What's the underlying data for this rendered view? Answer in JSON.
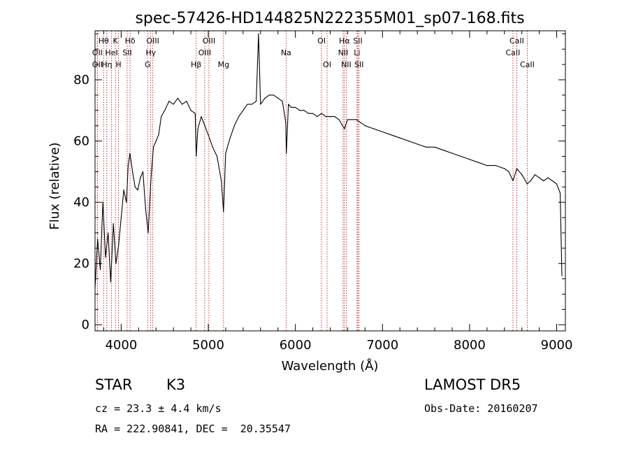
{
  "chart_data": {
    "type": "line",
    "title": "spec-57426-HD144825N222355M01_sp07-168.fits",
    "xlabel": "Wavelength (Å)",
    "ylabel": "Flux (relative)",
    "xlim": [
      3700,
      9100
    ],
    "ylim": [
      -2,
      96
    ],
    "x_ticks": [
      4000,
      5000,
      6000,
      7000,
      8000,
      9000
    ],
    "y_ticks": [
      0,
      20,
      40,
      60,
      80
    ],
    "grid": false,
    "series": [
      {
        "x": [
          3700,
          3730,
          3760,
          3790,
          3820,
          3850,
          3880,
          3910,
          3940,
          3970,
          4000,
          4030,
          4060,
          4080,
          4100,
          4130,
          4160,
          4190,
          4220,
          4250,
          4280,
          4310,
          4340,
          4370,
          4400,
          4430,
          4460,
          4500,
          4550,
          4600,
          4650,
          4700,
          4750,
          4800,
          4850,
          4861,
          4880,
          4920,
          4960,
          5000,
          5050,
          5100,
          5150,
          5175,
          5200,
          5250,
          5300,
          5350,
          5400,
          5450,
          5500,
          5550,
          5577,
          5600,
          5650,
          5700,
          5750,
          5800,
          5850,
          5890,
          5896,
          5920,
          5950,
          6000,
          6050,
          6100,
          6150,
          6200,
          6250,
          6300,
          6350,
          6400,
          6450,
          6500,
          6563,
          6600,
          6650,
          6700,
          6750,
          6800,
          6900,
          7000,
          7100,
          7200,
          7300,
          7400,
          7500,
          7600,
          7700,
          7800,
          7900,
          8000,
          8100,
          8200,
          8300,
          8400,
          8450,
          8498,
          8542,
          8600,
          8662,
          8700,
          8750,
          8800,
          8850,
          8900,
          8950,
          9000,
          9040,
          9060
        ],
        "y": [
          12,
          28,
          18,
          40,
          22,
          30,
          14,
          33,
          20,
          26,
          35,
          44,
          40,
          52,
          56,
          50,
          45,
          44,
          48,
          50,
          38,
          30,
          47,
          58,
          60,
          62,
          68,
          70,
          73,
          72,
          74,
          72,
          73,
          70,
          69,
          55,
          64,
          68,
          65,
          62,
          58,
          55,
          47,
          37,
          56,
          61,
          65,
          68,
          70,
          72,
          72,
          73,
          95,
          72,
          74,
          75,
          75,
          74,
          73,
          66,
          56,
          72,
          71,
          71,
          70,
          70,
          69,
          69,
          68,
          69,
          68,
          68,
          68,
          67,
          64,
          67,
          67,
          67,
          66,
          65,
          64,
          63,
          62,
          61,
          60,
          59,
          58,
          58,
          57,
          56,
          55,
          54,
          53,
          52,
          52,
          51,
          50,
          47,
          51,
          49,
          46,
          47,
          49,
          48,
          47,
          48,
          47,
          46,
          43,
          16
        ]
      }
    ],
    "lines": [
      {
        "name": "Hθ",
        "wave": 3798,
        "row": 0
      },
      {
        "name": "OII",
        "wave": 3727,
        "row": 1
      },
      {
        "name": "OII",
        "wave": 3727,
        "row": 2
      },
      {
        "name": "K",
        "wave": 3934,
        "row": 0
      },
      {
        "name": "HeI",
        "wave": 3889,
        "row": 1
      },
      {
        "name": "Hη",
        "wave": 3835,
        "row": 2
      },
      {
        "name": "H",
        "wave": 3969,
        "row": 2
      },
      {
        "name": "Hδ",
        "wave": 4102,
        "row": 0
      },
      {
        "name": "SII",
        "wave": 4069,
        "row": 1
      },
      {
        "name": "OIII",
        "wave": 4363,
        "row": 0
      },
      {
        "name": "Hγ",
        "wave": 4340,
        "row": 1
      },
      {
        "name": "G",
        "wave": 4304,
        "row": 2
      },
      {
        "name": "Hβ",
        "wave": 4861,
        "row": 2
      },
      {
        "name": "OIII",
        "wave": 5007,
        "row": 0
      },
      {
        "name": "OIII",
        "wave": 4959,
        "row": 1
      },
      {
        "name": "Mg",
        "wave": 5175,
        "row": 2
      },
      {
        "name": "Na",
        "wave": 5893,
        "row": 1
      },
      {
        "name": "OI",
        "wave": 6300,
        "row": 0
      },
      {
        "name": "OI",
        "wave": 6364,
        "row": 2
      },
      {
        "name": "Hα",
        "wave": 6563,
        "row": 0
      },
      {
        "name": "NII",
        "wave": 6548,
        "row": 1
      },
      {
        "name": "NII",
        "wave": 6584,
        "row": 2
      },
      {
        "name": "SII",
        "wave": 6717,
        "row": 0
      },
      {
        "name": "Li",
        "wave": 6708,
        "row": 1
      },
      {
        "name": "SII",
        "wave": 6731,
        "row": 2
      },
      {
        "name": "CaII",
        "wave": 8542,
        "row": 0
      },
      {
        "name": "CaII",
        "wave": 8498,
        "row": 1
      },
      {
        "name": "CaII",
        "wave": 8662,
        "row": 2
      }
    ]
  },
  "info": {
    "object_class": "STAR",
    "subclass": "K3",
    "survey": "LAMOST DR5",
    "velocity": "cz = 23.3 ± 4.4 km/s",
    "obs_date": "Obs-Date: 20160207",
    "coords": "RA = 222.90841, DEC =  20.35547"
  },
  "colors": {
    "spectrum": "#000000",
    "line_markers": "#c00000",
    "axes": "#000000"
  }
}
